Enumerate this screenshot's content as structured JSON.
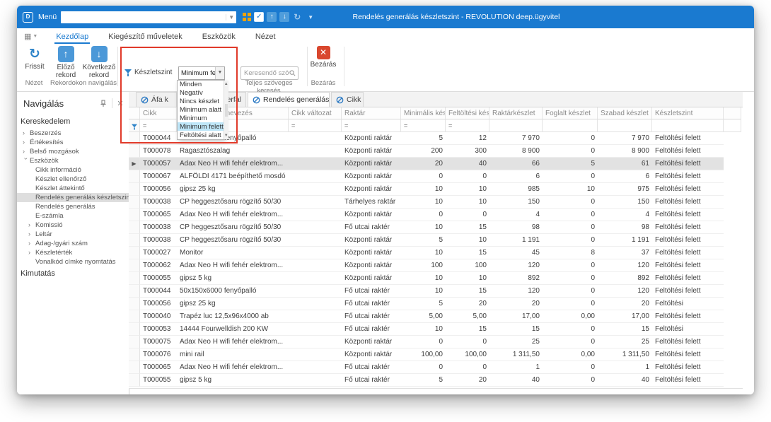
{
  "titlebar": {
    "menu_label": "Menü",
    "menu_value": "",
    "title": "Rendelés generálás készletszint - REVOLUTION deep.ügyvitel"
  },
  "ribbon_tabs": [
    {
      "label": "Kezdőlap",
      "active": true
    },
    {
      "label": "Kiegészítő műveletek",
      "active": false
    },
    {
      "label": "Eszközök",
      "active": false
    },
    {
      "label": "Nézet",
      "active": false
    }
  ],
  "ribbon": {
    "refresh_label": "Frissít",
    "prev_label": "Előző rekord",
    "next_label": "Következő rekord",
    "group_view": "Nézet",
    "group_records": "Rekordokon navigálás",
    "filter_label": "Készletszint",
    "filter_value": "Minimum felett",
    "search_placeholder": "Keresendő szöveg...",
    "group_search": "Teljes szöveges keresés",
    "close_label": "Bezárás",
    "group_close": "Bezárás"
  },
  "filter_popup": {
    "options": [
      "Minden",
      "Negatív",
      "Nincs készlet",
      "Minimum alatt",
      "Minimum",
      "Minimum felett",
      "Feltöltési alatt"
    ],
    "selected": "Minimum felett"
  },
  "sidebar": {
    "title": "Navigálás",
    "items": [
      {
        "label": "Kereskedelem",
        "type": "group"
      },
      {
        "label": "Beszerzés",
        "type": "branch"
      },
      {
        "label": "Értékesítés",
        "type": "branch"
      },
      {
        "label": "Belső mozgások",
        "type": "branch"
      },
      {
        "label": "Eszközök",
        "type": "branch",
        "expanded": true
      },
      {
        "label": "Cikk információ",
        "type": "leaf"
      },
      {
        "label": "Készlet ellenőrző",
        "type": "leaf"
      },
      {
        "label": "Készlet áttekintő",
        "type": "leaf"
      },
      {
        "label": "Rendelés generálás készletszint",
        "type": "leaf",
        "selected": true
      },
      {
        "label": "Rendelés generálás",
        "type": "leaf"
      },
      {
        "label": "E-számla",
        "type": "leaf"
      },
      {
        "label": "Komissió",
        "type": "branch",
        "indent": 1
      },
      {
        "label": "Leltár",
        "type": "branch",
        "indent": 1
      },
      {
        "label": "Adag-/gyári szám",
        "type": "branch",
        "indent": 1
      },
      {
        "label": "Készletérték",
        "type": "branch",
        "indent": 1
      },
      {
        "label": "Vonalkód címke nyomtatás",
        "type": "leaf"
      },
      {
        "label": "Kimutatás",
        "type": "group"
      }
    ]
  },
  "doc_tabs": [
    {
      "label": "Áfa k",
      "active": false,
      "closable": false,
      "right_text": false
    },
    {
      "label": "zerfal",
      "active": false,
      "closable": false,
      "right_text": true
    },
    {
      "label": "Rendelés generálás",
      "active": true,
      "closable": true,
      "right_text": false
    },
    {
      "label": "Cikk",
      "active": false,
      "closable": false,
      "right_text": false
    }
  ],
  "grid": {
    "columns": [
      "",
      "Cikk",
      "Megnevezés",
      "Cikk változat",
      "Raktár",
      "Minimális kés...",
      "Feltöltési kész...",
      "Raktárkészlet",
      "Foglalt készlet",
      "Szabad készlet",
      "Készletszint",
      ""
    ],
    "filter_eq_columns": [
      1,
      2,
      3,
      4,
      5,
      6
    ],
    "selected_row_index": 2,
    "rows": [
      [
        "T000044",
        "50x150x6000 fenyőpalló",
        "",
        "Központi raktár",
        "5",
        "12",
        "7 970",
        "0",
        "7 970",
        "Feltöltési felett"
      ],
      [
        "T000078",
        "Ragasztószalag",
        "",
        "Központi raktár",
        "200",
        "300",
        "8 900",
        "0",
        "8 900",
        "Feltöltési felett"
      ],
      [
        "T000057",
        "Adax Neo H wifi fehér elektrom...",
        "",
        "Központi raktár",
        "20",
        "40",
        "66",
        "5",
        "61",
        "Feltöltési felett"
      ],
      [
        "T000067",
        "ALFÖLDI 4171 beépíthető mosdó",
        "",
        "Központi raktár",
        "0",
        "0",
        "6",
        "0",
        "6",
        "Feltöltési felett"
      ],
      [
        "T000056",
        "gipsz 25 kg",
        "",
        "Központi raktár",
        "10",
        "10",
        "985",
        "10",
        "975",
        "Feltöltési felett"
      ],
      [
        "T000038",
        "CP heggesztősaru rögzítő 50/30",
        "",
        "Tárhelyes raktár",
        "10",
        "10",
        "150",
        "0",
        "150",
        "Feltöltési felett"
      ],
      [
        "T000065",
        "Adax Neo H wifi fehér elektrom...",
        "",
        "Központi raktár",
        "0",
        "0",
        "4",
        "0",
        "4",
        "Feltöltési felett"
      ],
      [
        "T000038",
        "CP heggesztősaru rögzítő 50/30",
        "",
        "Fő utcai raktér",
        "10",
        "15",
        "98",
        "0",
        "98",
        "Feltöltési felett"
      ],
      [
        "T000038",
        "CP heggesztősaru rögzítő 50/30",
        "",
        "Központi raktár",
        "5",
        "10",
        "1 191",
        "0",
        "1 191",
        "Feltöltési felett"
      ],
      [
        "T000027",
        "Monitor",
        "",
        "Központi raktár",
        "10",
        "15",
        "45",
        "8",
        "37",
        "Feltöltési felett"
      ],
      [
        "T000062",
        "Adax Neo H wifi fehér elektrom...",
        "",
        "Központi raktár",
        "100",
        "100",
        "120",
        "0",
        "120",
        "Feltöltési felett"
      ],
      [
        "T000055",
        "gipsz 5 kg",
        "",
        "Központi raktár",
        "10",
        "10",
        "892",
        "0",
        "892",
        "Feltöltési felett"
      ],
      [
        "T000044",
        "50x150x6000 fenyőpalló",
        "",
        "Fő utcai raktér",
        "10",
        "15",
        "120",
        "0",
        "120",
        "Feltöltési felett"
      ],
      [
        "T000056",
        "gipsz 25 kg",
        "",
        "Fő utcai raktér",
        "5",
        "20",
        "20",
        "0",
        "20",
        "Feltöltési"
      ],
      [
        "T000040",
        "Trapéz luc 12,5x96x4000 ab",
        "",
        "Fő utcai raktér",
        "5,00",
        "5,00",
        "17,00",
        "0,00",
        "17,00",
        "Feltöltési felett"
      ],
      [
        "T000053",
        "14444 Fourwelldish 200 KW",
        "",
        "Fő utcai raktér",
        "10",
        "15",
        "15",
        "0",
        "15",
        "Feltöltési"
      ],
      [
        "T000075",
        "Adax Neo H wifi fehér elektrom...",
        "",
        "Központi raktár",
        "0",
        "0",
        "25",
        "0",
        "25",
        "Feltöltési felett"
      ],
      [
        "T000076",
        "mini rail",
        "",
        "Központi raktár",
        "100,00",
        "100,00",
        "1 311,50",
        "0,00",
        "1 311,50",
        "Feltöltési felett"
      ],
      [
        "T000065",
        "Adax Neo H wifi fehér elektrom...",
        "",
        "Fő utcai raktér",
        "0",
        "0",
        "1",
        "0",
        "1",
        "Feltöltési felett"
      ],
      [
        "T000055",
        "gipsz 5 kg",
        "",
        "Fő utcai raktér",
        "5",
        "20",
        "40",
        "0",
        "40",
        "Feltöltési felett"
      ]
    ]
  },
  "colors": {
    "titlebar": "#1a7ad0",
    "accent_blue": "#1a7ad0",
    "button_blue": "#4b98d8",
    "close_red": "#d9472e",
    "annotation_red": "#e03a2a",
    "popup_highlight": "#bee6f8",
    "row_selected": "#e2e2e2"
  }
}
